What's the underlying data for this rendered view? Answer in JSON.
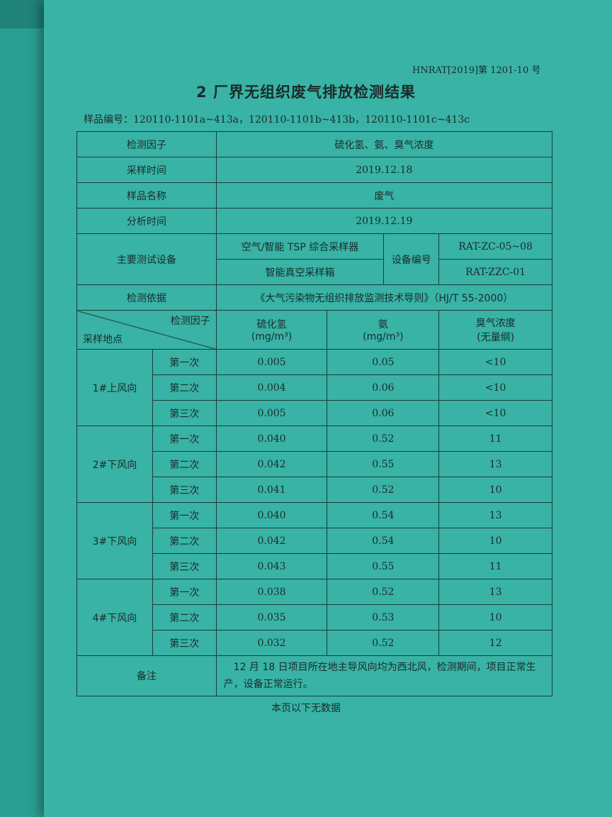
{
  "doc_ref": "HNRAT[2019]第 1201-10 号",
  "title": "2  厂界无组织废气排放检测结果",
  "sample_ids": "样品编号：120110-1101a~413a，120110-1101b~413b，120110-1101c~413c",
  "info": {
    "factor_label": "检测因子",
    "factor_value": "硫化氢、氨、臭气浓度",
    "sampling_time_label": "采样时间",
    "sampling_time_value": "2019.12.18",
    "sample_name_label": "样品名称",
    "sample_name_value": "废气",
    "analysis_time_label": "分析时间",
    "analysis_time_value": "2019.12.19",
    "equipment_label": "主要测试设备",
    "equipment_1": "空气/智能 TSP 综合采样器",
    "equipment_2": "智能真空采样箱",
    "equipment_no_label": "设备编号",
    "equipment_no_1": "RAT-ZC-05~08",
    "equipment_no_2": "RAT-ZZC-01",
    "basis_label": "检测依据",
    "basis_value": "《大气污染物无组织排放监测技术导则》（HJ/T 55-2000）"
  },
  "header": {
    "factor": "检测因子",
    "location": "采样地点",
    "h2s": "硫化氢",
    "h2s_unit": "(mg/m³)",
    "nh3": "氨",
    "nh3_unit": "(mg/m³)",
    "odor": "臭气浓度",
    "odor_unit": "(无量纲)"
  },
  "locations": [
    {
      "name": "1#上风向",
      "rows": [
        [
          "第一次",
          "0.005",
          "0.05",
          "<10"
        ],
        [
          "第二次",
          "0.004",
          "0.06",
          "<10"
        ],
        [
          "第三次",
          "0.005",
          "0.06",
          "<10"
        ]
      ]
    },
    {
      "name": "2#下风向",
      "rows": [
        [
          "第一次",
          "0.040",
          "0.52",
          "11"
        ],
        [
          "第二次",
          "0.042",
          "0.55",
          "13"
        ],
        [
          "第三次",
          "0.041",
          "0.52",
          "10"
        ]
      ]
    },
    {
      "name": "3#下风向",
      "rows": [
        [
          "第一次",
          "0.040",
          "0.54",
          "13"
        ],
        [
          "第二次",
          "0.042",
          "0.54",
          "10"
        ],
        [
          "第三次",
          "0.043",
          "0.55",
          "11"
        ]
      ]
    },
    {
      "name": "4#下风向",
      "rows": [
        [
          "第一次",
          "0.038",
          "0.52",
          "13"
        ],
        [
          "第二次",
          "0.035",
          "0.53",
          "10"
        ],
        [
          "第三次",
          "0.032",
          "0.52",
          "12"
        ]
      ]
    }
  ],
  "remark_label": "备注",
  "remark_value": "　12 月 18 日项目所在地主导风向均为西北风，检测期间，项目正常生产，设备正常运行。",
  "footer": "本页以下无数据"
}
